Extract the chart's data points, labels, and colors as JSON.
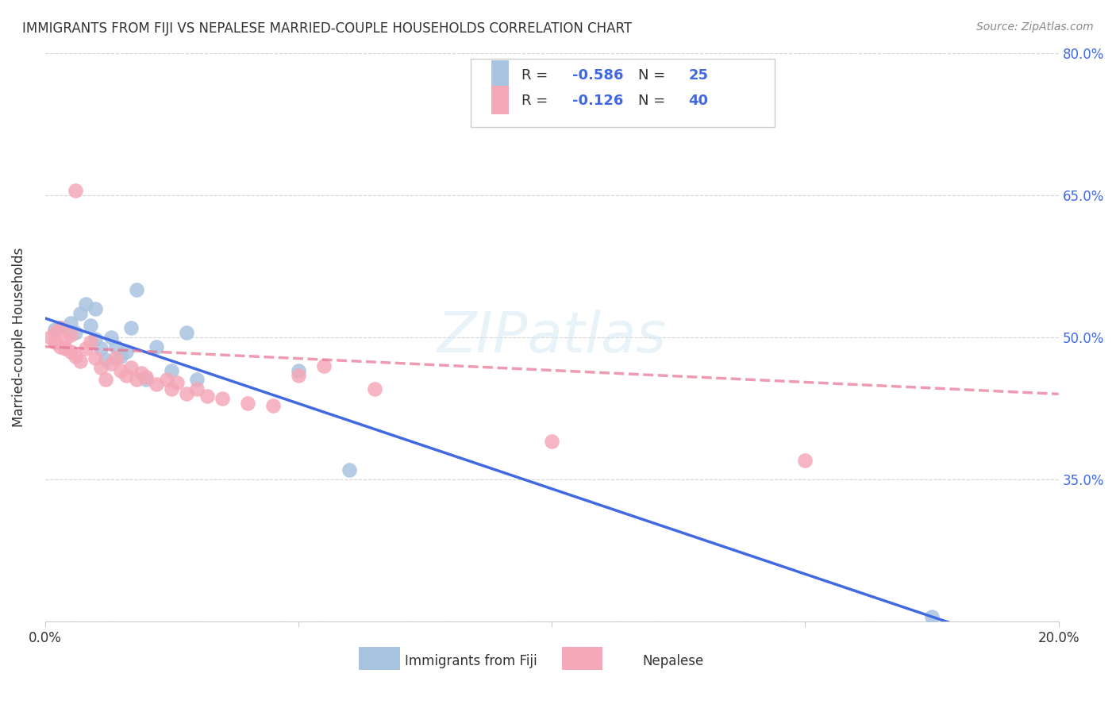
{
  "title": "IMMIGRANTS FROM FIJI VS NEPALESE MARRIED-COUPLE HOUSEHOLDS CORRELATION CHART",
  "source": "Source: ZipAtlas.com",
  "xlabel_bottom": "",
  "ylabel": "Married-couple Households",
  "x_axis_label": "",
  "x_ticks": [
    0.0,
    0.05,
    0.1,
    0.15,
    0.2
  ],
  "x_tick_labels": [
    "0.0%",
    "",
    "",
    "",
    "20.0%"
  ],
  "y_ticks": [
    0.2,
    0.35,
    0.5,
    0.65,
    0.8
  ],
  "y_tick_labels_right": [
    "",
    "35.0%",
    "50.0%",
    "65.0%",
    "80.0%"
  ],
  "background_color": "#ffffff",
  "grid_color": "#cccccc",
  "fiji_color": "#a8c4e0",
  "nepalese_color": "#f4a8b8",
  "fiji_line_color": "#4169e1",
  "nepalese_line_color": "#e87090",
  "legend_R_fiji": "R = -0.586",
  "legend_N_fiji": "N = 25",
  "legend_R_nepalese": "R = -0.126",
  "legend_N_nepalese": "N = 40",
  "fiji_scatter_x": [
    0.002,
    0.003,
    0.004,
    0.005,
    0.005,
    0.006,
    0.007,
    0.008,
    0.009,
    0.01,
    0.011,
    0.012,
    0.013,
    0.014,
    0.015,
    0.016,
    0.017,
    0.02,
    0.022,
    0.025,
    0.028,
    0.03,
    0.05,
    0.06,
    0.175
  ],
  "fiji_scatter_y": [
    0.508,
    0.51,
    0.5,
    0.498,
    0.515,
    0.505,
    0.52,
    0.53,
    0.512,
    0.495,
    0.488,
    0.476,
    0.5,
    0.49,
    0.48,
    0.485,
    0.51,
    0.455,
    0.49,
    0.465,
    0.505,
    0.455,
    0.465,
    0.36,
    0.205
  ],
  "nepalese_scatter_x": [
    0.001,
    0.002,
    0.002,
    0.003,
    0.003,
    0.004,
    0.004,
    0.005,
    0.005,
    0.006,
    0.006,
    0.007,
    0.008,
    0.009,
    0.01,
    0.011,
    0.012,
    0.013,
    0.014,
    0.015,
    0.016,
    0.017,
    0.018,
    0.019,
    0.02,
    0.022,
    0.024,
    0.025,
    0.026,
    0.028,
    0.03,
    0.032,
    0.035,
    0.04,
    0.045,
    0.05,
    0.055,
    0.065,
    0.1,
    0.15
  ],
  "nepalese_scatter_y": [
    0.5,
    0.495,
    0.505,
    0.49,
    0.51,
    0.488,
    0.498,
    0.485,
    0.502,
    0.492,
    0.48,
    0.475,
    0.488,
    0.495,
    0.478,
    0.468,
    0.455,
    0.472,
    0.478,
    0.465,
    0.46,
    0.468,
    0.455,
    0.462,
    0.458,
    0.45,
    0.455,
    0.445,
    0.452,
    0.44,
    0.445,
    0.438,
    0.435,
    0.43,
    0.428,
    0.46,
    0.47,
    0.445,
    0.39,
    0.37
  ],
  "watermark": "ZIPatlas",
  "legend_loc": "upper right",
  "figsize": [
    14.06,
    8.92
  ],
  "dpi": 100
}
